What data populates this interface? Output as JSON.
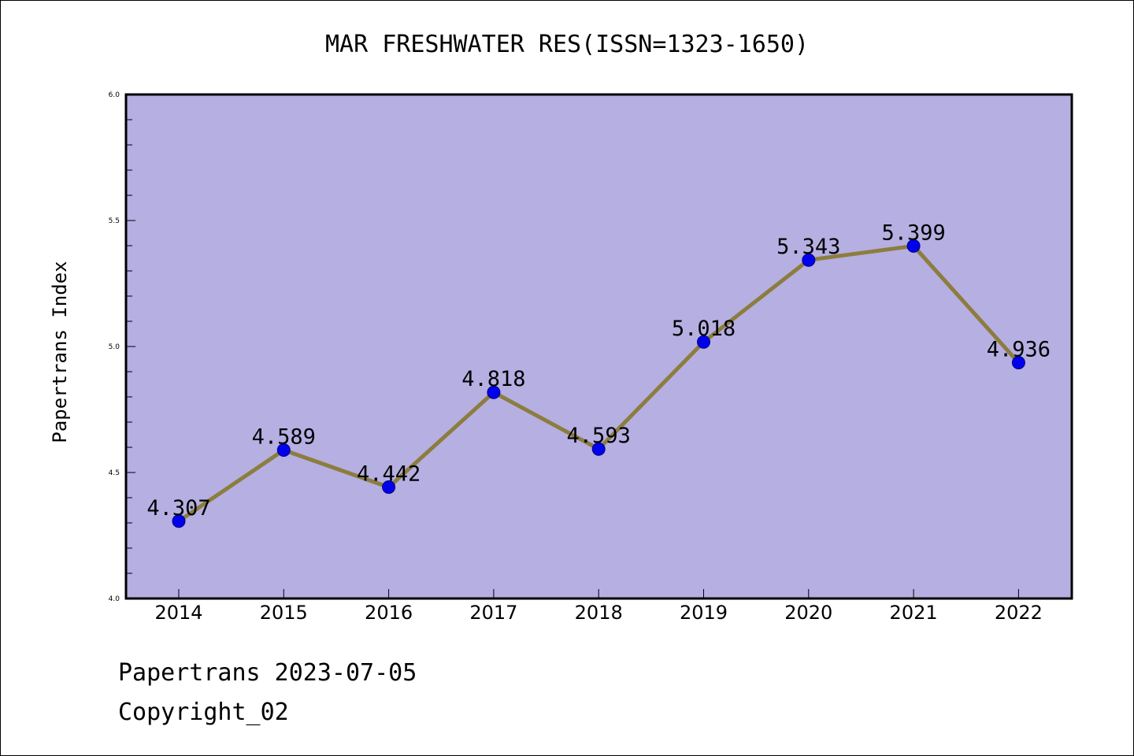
{
  "chart_data": {
    "type": "line",
    "title": "MAR FRESHWATER RES(ISSN=1323-1650)",
    "ylabel": "Papertrans Index",
    "xlabel": "",
    "categories": [
      "2014",
      "2015",
      "2016",
      "2017",
      "2018",
      "2019",
      "2020",
      "2021",
      "2022"
    ],
    "values": [
      4.307,
      4.589,
      4.442,
      4.818,
      4.593,
      5.018,
      5.343,
      5.399,
      4.936
    ],
    "data_labels": [
      "4.307",
      "4.589",
      "4.442",
      "4.818",
      "4.593",
      "5.018",
      "5.343",
      "5.399",
      "4.936"
    ],
    "ylim": [
      4.0,
      6.0
    ],
    "yticks": [
      "4.0",
      "4.5",
      "5.0",
      "5.5",
      "6.0"
    ],
    "grid": false,
    "legend": "none",
    "colors": {
      "plot_background": "#b5afe2",
      "line": "#8c7d3f",
      "marker": "#0000ee",
      "axis": "#000000"
    }
  },
  "footer": {
    "line1": "Papertrans 2023-07-05",
    "line2": "Copyright_02"
  }
}
